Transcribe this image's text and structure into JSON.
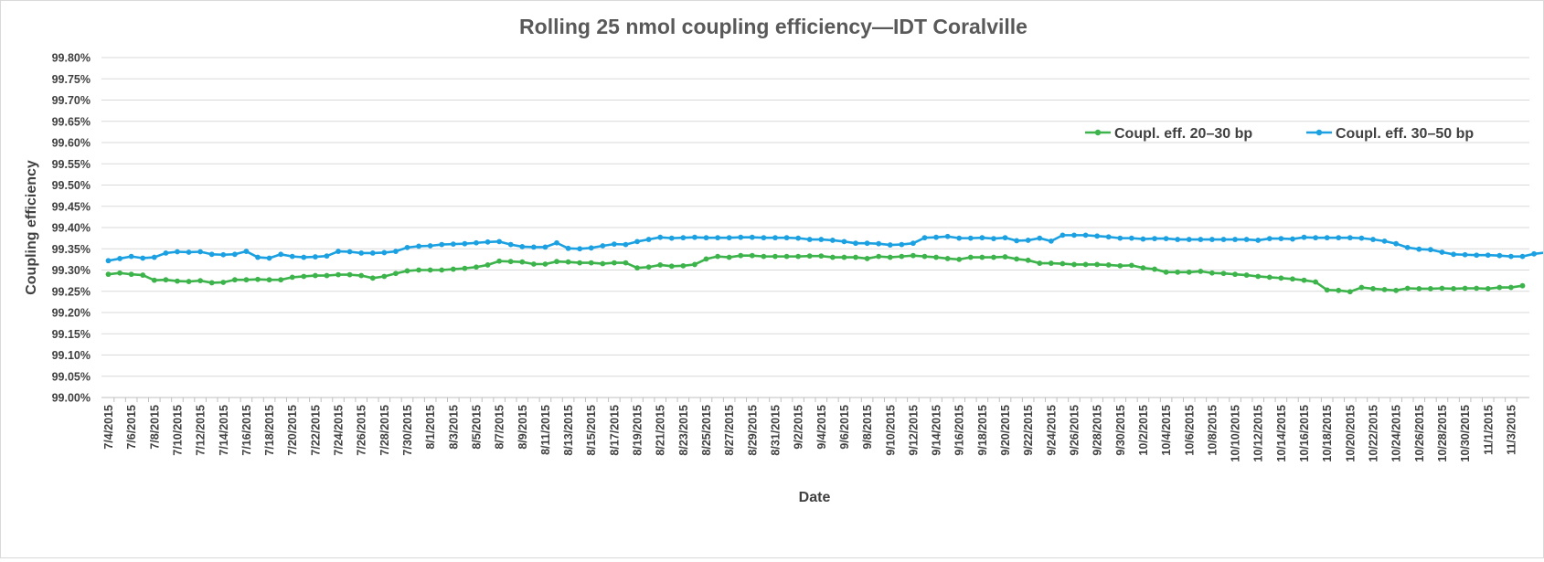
{
  "chart_data": {
    "type": "line",
    "title": "Rolling 25 nmol coupling efficiency—IDT Coralville",
    "xlabel": "Date",
    "ylabel": "Coupling efficiency",
    "ylim": [
      99.0,
      99.8
    ],
    "y_tick_step": 0.05,
    "y_tick_format": "percent_2dp",
    "grid": true,
    "legend_position": "upper-right",
    "date_start": "2015-07-04",
    "date_end": "2015-11-04",
    "x_tick_labels": [
      "7/4/2015",
      "7/6/2015",
      "7/8/2015",
      "7/10/2015",
      "7/12/2015",
      "7/14/2015",
      "7/16/2015",
      "7/18/2015",
      "7/20/2015",
      "7/22/2015",
      "7/24/2015",
      "7/26/2015",
      "7/28/2015",
      "7/30/2015",
      "8/1/2015",
      "8/3/2015",
      "8/5/2015",
      "8/7/2015",
      "8/9/2015",
      "8/11/2015",
      "8/13/2015",
      "8/15/2015",
      "8/17/2015",
      "8/19/2015",
      "8/21/2015",
      "8/23/2015",
      "8/25/2015",
      "8/27/2015",
      "8/29/2015",
      "8/31/2015",
      "9/2/2015",
      "9/4/2015",
      "9/6/2015",
      "9/8/2015",
      "9/10/2015",
      "9/12/2015",
      "9/14/2015",
      "9/16/2015",
      "9/18/2015",
      "9/20/2015",
      "9/22/2015",
      "9/24/2015",
      "9/26/2015",
      "9/28/2015",
      "9/30/2015",
      "10/2/2015",
      "10/4/2015",
      "10/6/2015",
      "10/8/2015",
      "10/10/2015",
      "10/12/2015",
      "10/14/2015",
      "10/16/2015",
      "10/18/2015",
      "10/20/2015",
      "10/22/2015",
      "10/24/2015",
      "10/26/2015",
      "10/28/2015",
      "10/30/2015",
      "11/1/2015",
      "11/3/2015"
    ],
    "series": [
      {
        "name": "Coupl. eff. 20–30 bp",
        "color": "#3cb44b",
        "values": [
          99.29,
          99.293,
          99.29,
          99.288,
          99.276,
          99.277,
          99.274,
          99.273,
          99.275,
          99.27,
          99.271,
          99.277,
          99.277,
          99.278,
          99.277,
          99.277,
          99.283,
          99.285,
          99.287,
          99.287,
          99.289,
          99.289,
          99.287,
          99.281,
          99.285,
          99.292,
          99.298,
          99.3,
          99.3,
          99.3,
          99.302,
          99.304,
          99.307,
          99.312,
          99.321,
          99.32,
          99.319,
          99.314,
          99.314,
          99.32,
          99.319,
          99.317,
          99.317,
          99.315,
          99.317,
          99.317,
          99.305,
          99.307,
          99.312,
          99.309,
          99.31,
          99.313,
          99.326,
          99.332,
          99.33,
          99.334,
          99.334,
          99.332,
          99.332,
          99.332,
          99.332,
          99.333,
          99.333,
          99.33,
          99.33,
          99.33,
          99.327,
          99.332,
          99.33,
          99.332,
          99.334,
          99.332,
          99.33,
          99.327,
          99.325,
          99.33,
          99.33,
          99.33,
          99.331,
          99.326,
          99.323,
          99.316,
          99.316,
          99.315,
          99.313,
          99.313,
          99.313,
          99.312,
          99.31,
          99.311,
          99.305,
          99.302,
          99.295,
          99.295,
          99.295,
          99.297,
          99.293,
          99.292,
          99.29,
          99.288,
          99.285,
          99.283,
          99.281,
          99.279,
          99.276,
          99.272,
          99.253,
          99.252,
          99.249,
          99.259,
          99.256,
          99.254,
          99.252,
          99.257,
          99.256,
          99.256,
          99.257,
          99.256,
          99.257,
          99.257,
          99.256,
          99.259,
          99.259,
          99.263
        ]
      },
      {
        "name": "Coupl. eff. 30–50 bp",
        "color": "#1ba1e2",
        "values": [
          99.322,
          99.327,
          99.332,
          99.328,
          99.33,
          99.34,
          99.343,
          99.342,
          99.343,
          99.337,
          99.336,
          99.337,
          99.344,
          99.33,
          99.328,
          99.337,
          99.332,
          99.33,
          99.331,
          99.333,
          99.344,
          99.343,
          99.34,
          99.34,
          99.341,
          99.344,
          99.353,
          99.356,
          99.357,
          99.36,
          99.361,
          99.362,
          99.364,
          99.366,
          99.367,
          99.36,
          99.355,
          99.354,
          99.354,
          99.364,
          99.351,
          99.35,
          99.352,
          99.357,
          99.361,
          99.36,
          99.367,
          99.372,
          99.377,
          99.375,
          99.376,
          99.377,
          99.376,
          99.376,
          99.376,
          99.377,
          99.377,
          99.376,
          99.376,
          99.376,
          99.375,
          99.372,
          99.372,
          99.37,
          99.367,
          99.363,
          99.363,
          99.362,
          99.359,
          99.36,
          99.363,
          99.376,
          99.377,
          99.379,
          99.375,
          99.375,
          99.376,
          99.374,
          99.376,
          99.369,
          99.37,
          99.375,
          99.368,
          99.382,
          99.382,
          99.382,
          99.38,
          99.378,
          99.375,
          99.375,
          99.373,
          99.374,
          99.374,
          99.372,
          99.372,
          99.372,
          99.372,
          99.372,
          99.372,
          99.372,
          99.37,
          99.374,
          99.374,
          99.373,
          99.377,
          99.376,
          99.376,
          99.376,
          99.376,
          99.375,
          99.372,
          99.368,
          99.362,
          99.353,
          99.349,
          99.348,
          99.342,
          99.337,
          99.336,
          99.335,
          99.335,
          99.334,
          99.332,
          99.332,
          99.338,
          99.341,
          99.338
        ]
      }
    ]
  }
}
